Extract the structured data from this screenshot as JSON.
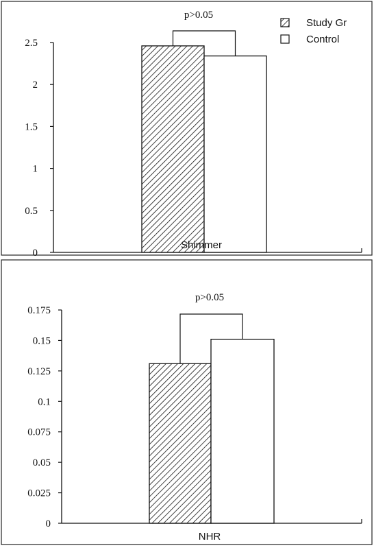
{
  "chart_data": [
    {
      "type": "bar",
      "categories": [
        "Shimmer"
      ],
      "xlabel": "Shimmer",
      "ylabel": "",
      "title": "",
      "ylim": [
        0,
        2.5
      ],
      "yticks": [
        "0",
        "0.5",
        "1",
        "1.5",
        "2",
        "2.5"
      ],
      "series": [
        {
          "name": "Study Gr",
          "values": [
            2.46
          ],
          "pattern": "diagonal-hatch"
        },
        {
          "name": "Control",
          "values": [
            2.34
          ],
          "pattern": "none"
        }
      ],
      "annotation": "p>0.05",
      "legend": {
        "position": "top-right",
        "entries": [
          "Study Gr",
          "Control"
        ]
      },
      "grid": false
    },
    {
      "type": "bar",
      "categories": [
        "NHR"
      ],
      "xlabel": "NHR",
      "ylabel": "",
      "title": "",
      "ylim": [
        0,
        0.175
      ],
      "yticks": [
        "0",
        "0.025",
        "0.05",
        "0.075",
        "0.1",
        "0.125",
        "0.15",
        "0.175"
      ],
      "series": [
        {
          "name": "Study Gr",
          "values": [
            0.131
          ],
          "pattern": "diagonal-hatch"
        },
        {
          "name": "Control",
          "values": [
            0.151
          ],
          "pattern": "none"
        }
      ],
      "annotation": "p>0.05",
      "legend": null,
      "grid": false
    }
  ],
  "colors": {
    "ink": "#111111",
    "background": "#ffffff"
  }
}
